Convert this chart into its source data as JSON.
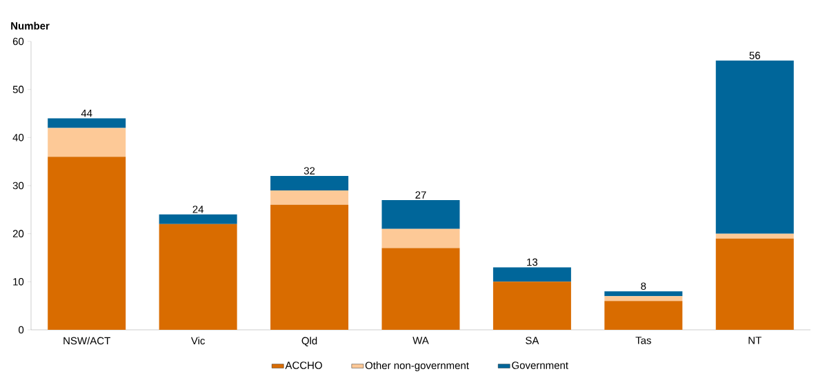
{
  "chart_data": {
    "type": "bar",
    "stacked": true,
    "ylabel": "Number",
    "categories": [
      "NSW/ACT",
      "Vic",
      "Qld",
      "WA",
      "SA",
      "Tas",
      "NT"
    ],
    "series": [
      {
        "name": "ACCHO",
        "color": "#d96c00",
        "values": [
          36,
          22,
          26,
          17,
          10,
          6,
          19
        ]
      },
      {
        "name": "Other non-government",
        "color": "#fdc997",
        "values": [
          6,
          0,
          3,
          4,
          0,
          1,
          1
        ]
      },
      {
        "name": "Government",
        "color": "#00669a",
        "values": [
          2,
          2,
          3,
          6,
          3,
          1,
          36
        ]
      }
    ],
    "totals": [
      "44",
      "24",
      "32",
      "27",
      "13",
      "8",
      "56"
    ],
    "ylim": [
      0,
      60
    ],
    "yticks": [
      0,
      10,
      20,
      30,
      40,
      50,
      60
    ],
    "grid": false,
    "legend": "bottom"
  }
}
